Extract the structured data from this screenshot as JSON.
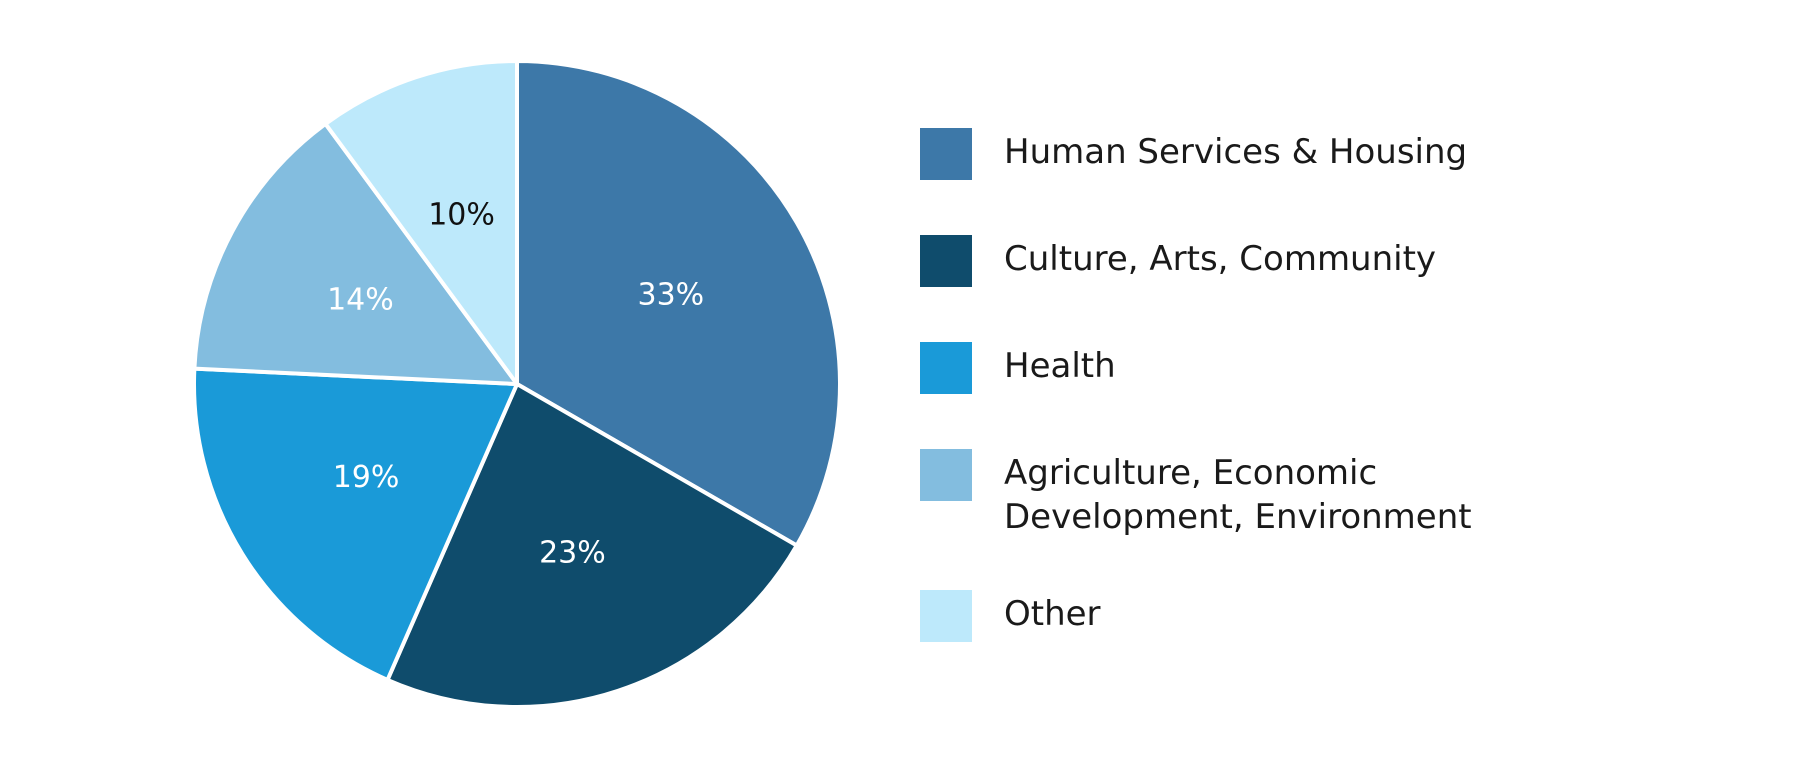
{
  "chart_data": {
    "type": "pie",
    "categories": [
      "Human Services & Housing",
      "Culture, Arts, Community",
      "Health",
      "Agriculture, Economic Development, Environment",
      "Other"
    ],
    "values": [
      33,
      23,
      19,
      14,
      10
    ],
    "value_labels": [
      "33%",
      "23%",
      "19%",
      "14%",
      "10%"
    ],
    "colors": [
      "#3d78a8",
      "#0f4c6c",
      "#1a9ad8",
      "#83bddf",
      "#bde9fb"
    ],
    "label_colors": [
      "#ffffff",
      "#ffffff",
      "#ffffff",
      "#ffffff",
      "#111111"
    ],
    "legend_placement": "right",
    "start_angle": "top",
    "direction": "clockwise"
  },
  "legend": {
    "items": [
      {
        "label": "Human Services & Housing",
        "color": "#3d78a8"
      },
      {
        "label": "Culture, Arts, Community",
        "color": "#0f4c6c"
      },
      {
        "label": "Health",
        "color": "#1a9ad8"
      },
      {
        "label": "Agriculture, Economic Development, Environment",
        "color": "#83bddf"
      },
      {
        "label": "Other",
        "color": "#bde9fb"
      }
    ]
  }
}
